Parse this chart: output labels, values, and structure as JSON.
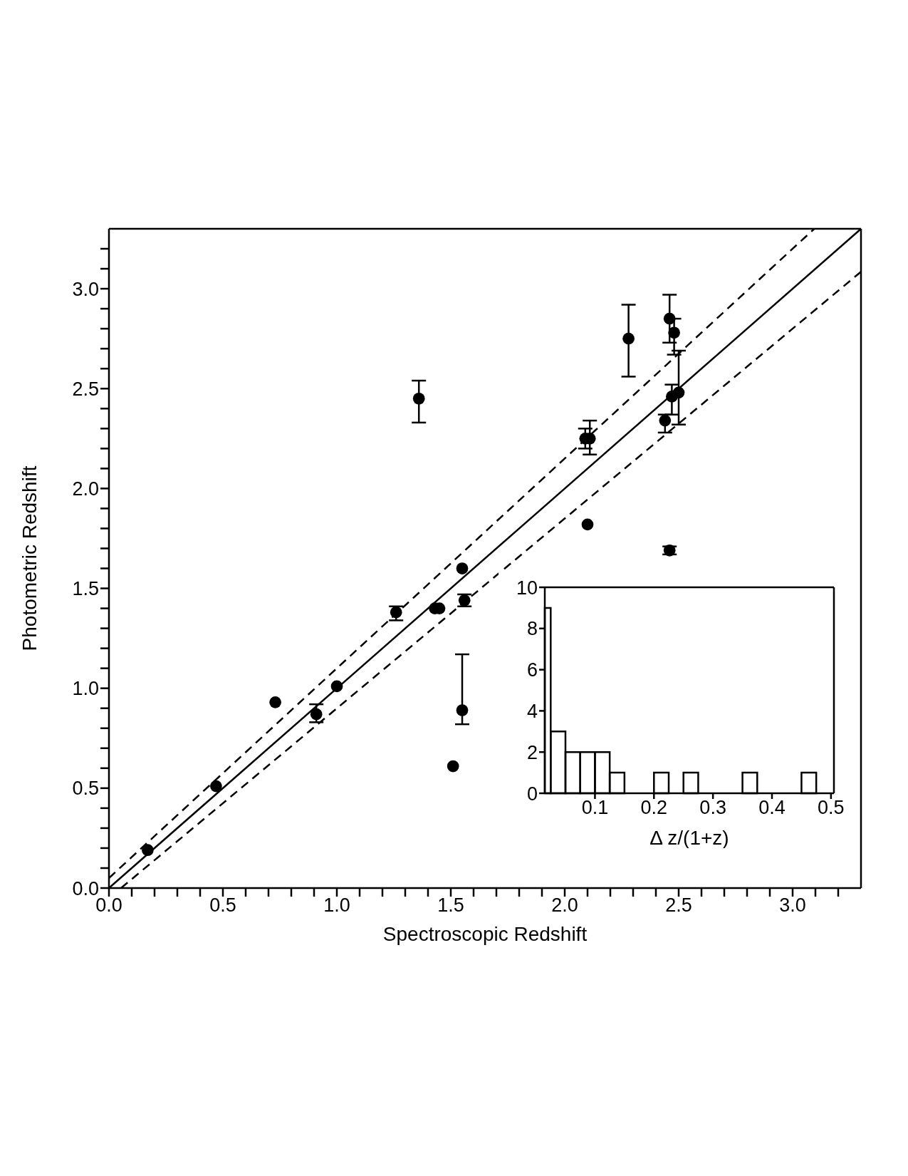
{
  "chart_data": [
    {
      "type": "scatter",
      "xlabel": "Spectroscopic Redshift",
      "ylabel": "Photometric Redshift",
      "xlim": [
        0,
        3.3
      ],
      "ylim": [
        0,
        3.3
      ],
      "xticks": [
        {
          "value": 0,
          "label": "0.0"
        },
        {
          "value": 0.1,
          "label": null
        },
        {
          "value": 0.2,
          "label": null
        },
        {
          "value": 0.3,
          "label": null
        },
        {
          "value": 0.4,
          "label": null
        },
        {
          "value": 0.5,
          "label": "0.5"
        },
        {
          "value": 0.6,
          "label": null
        },
        {
          "value": 0.7,
          "label": null
        },
        {
          "value": 0.8,
          "label": null
        },
        {
          "value": 0.9,
          "label": null
        },
        {
          "value": 1,
          "label": "1.0"
        },
        {
          "value": 1.1,
          "label": null
        },
        {
          "value": 1.2,
          "label": null
        },
        {
          "value": 1.3,
          "label": null
        },
        {
          "value": 1.4,
          "label": null
        },
        {
          "value": 1.5,
          "label": "1.5"
        },
        {
          "value": 1.6,
          "label": null
        },
        {
          "value": 1.7,
          "label": null
        },
        {
          "value": 1.8,
          "label": null
        },
        {
          "value": 1.9,
          "label": null
        },
        {
          "value": 2,
          "label": "2.0"
        },
        {
          "value": 2.1,
          "label": null
        },
        {
          "value": 2.2,
          "label": null
        },
        {
          "value": 2.3,
          "label": null
        },
        {
          "value": 2.4,
          "label": null
        },
        {
          "value": 2.5,
          "label": "2.5"
        },
        {
          "value": 2.6,
          "label": null
        },
        {
          "value": 2.7,
          "label": null
        },
        {
          "value": 2.8,
          "label": null
        },
        {
          "value": 2.9,
          "label": null
        },
        {
          "value": 3,
          "label": "3.0"
        },
        {
          "value": 3.1,
          "label": null
        },
        {
          "value": 3.2,
          "label": null
        }
      ],
      "yticks": [
        {
          "value": 0,
          "label": "0.0"
        },
        {
          "value": 0.1,
          "label": null
        },
        {
          "value": 0.2,
          "label": null
        },
        {
          "value": 0.3,
          "label": null
        },
        {
          "value": 0.4,
          "label": null
        },
        {
          "value": 0.5,
          "label": "0.5"
        },
        {
          "value": 0.6,
          "label": null
        },
        {
          "value": 0.7,
          "label": null
        },
        {
          "value": 0.8,
          "label": null
        },
        {
          "value": 0.9,
          "label": null
        },
        {
          "value": 1,
          "label": "1.0"
        },
        {
          "value": 1.1,
          "label": null
        },
        {
          "value": 1.2,
          "label": null
        },
        {
          "value": 1.3,
          "label": null
        },
        {
          "value": 1.4,
          "label": null
        },
        {
          "value": 1.5,
          "label": "1.5"
        },
        {
          "value": 1.6,
          "label": null
        },
        {
          "value": 1.7,
          "label": null
        },
        {
          "value": 1.8,
          "label": null
        },
        {
          "value": 1.9,
          "label": null
        },
        {
          "value": 2,
          "label": "2.0"
        },
        {
          "value": 2.1,
          "label": null
        },
        {
          "value": 2.2,
          "label": null
        },
        {
          "value": 2.3,
          "label": null
        },
        {
          "value": 2.4,
          "label": null
        },
        {
          "value": 2.5,
          "label": "2.5"
        },
        {
          "value": 2.6,
          "label": null
        },
        {
          "value": 2.7,
          "label": null
        },
        {
          "value": 2.8,
          "label": null
        },
        {
          "value": 2.9,
          "label": null
        },
        {
          "value": 3,
          "label": "3.0"
        },
        {
          "value": 3.1,
          "label": null
        },
        {
          "value": 3.2,
          "label": null
        }
      ],
      "grid": false,
      "legend": false,
      "series": [
        {
          "type": "scatter",
          "color": "#000000",
          "marker": "circle",
          "x": [
            0.17,
            0.47,
            0.73,
            0.91,
            1.0,
            1.26,
            1.43,
            1.45,
            1.56,
            1.55,
            1.51,
            1.55,
            1.36,
            2.09,
            2.11,
            2.1,
            2.28,
            2.46,
            2.48,
            2.47,
            2.5,
            2.44,
            2.46
          ],
          "values": [
            0.19,
            0.51,
            0.93,
            0.87,
            1.01,
            1.38,
            1.4,
            1.4,
            1.44,
            0.89,
            0.61,
            1.6,
            2.45,
            2.25,
            2.25,
            1.82,
            2.75,
            2.85,
            2.78,
            2.46,
            2.48,
            2.34,
            1.69
          ],
          "errors": [
            null,
            null,
            null,
            [
              0.83,
              0.92
            ],
            null,
            [
              1.34,
              1.41
            ],
            null,
            null,
            [
              1.41,
              1.47
            ],
            [
              0.82,
              1.17
            ],
            null,
            null,
            [
              2.33,
              2.54
            ],
            [
              2.2,
              2.3
            ],
            [
              2.17,
              2.34
            ],
            null,
            [
              2.56,
              2.92
            ],
            [
              2.73,
              2.97
            ],
            [
              2.67,
              2.85
            ],
            [
              2.37,
              2.52
            ],
            [
              2.32,
              2.69
            ],
            [
              2.28,
              2.37
            ],
            [
              1.67,
              1.71
            ]
          ]
        },
        {
          "type": "line",
          "color": "#000000",
          "line_style": "solid",
          "marker": "none",
          "x": [
            0,
            3.3
          ],
          "values": [
            0,
            3.3
          ]
        },
        {
          "type": "line",
          "color": "#000000",
          "line_style": "dashed",
          "marker": "none",
          "x": [
            0,
            3.095
          ],
          "values": [
            0.05,
            3.3
          ]
        },
        {
          "type": "line",
          "color": "#000000",
          "line_style": "dashed",
          "marker": "none",
          "x": [
            0.053,
            3.3
          ],
          "values": [
            0,
            3.085
          ]
        }
      ]
    },
    {
      "type": "histogram",
      "xlabel": "Δ z/(1+z)",
      "xlim": [
        0.015,
        0.505
      ],
      "ylim": [
        0,
        10
      ],
      "xticks": [
        0.1,
        0.2,
        0.3,
        0.4,
        0.5
      ],
      "yticks": [
        0,
        2,
        4,
        6,
        8,
        10
      ],
      "grid": false,
      "legend": false,
      "color": "#000000",
      "bins": [
        0.015,
        0.025,
        0.05,
        0.075,
        0.1,
        0.125,
        0.15,
        0.2,
        0.225,
        0.25,
        0.275,
        0.35,
        0.375,
        0.45,
        0.475
      ],
      "values": [
        9,
        3,
        2,
        2,
        2,
        1,
        0,
        1,
        0,
        1,
        0,
        1,
        0,
        1
      ]
    }
  ]
}
